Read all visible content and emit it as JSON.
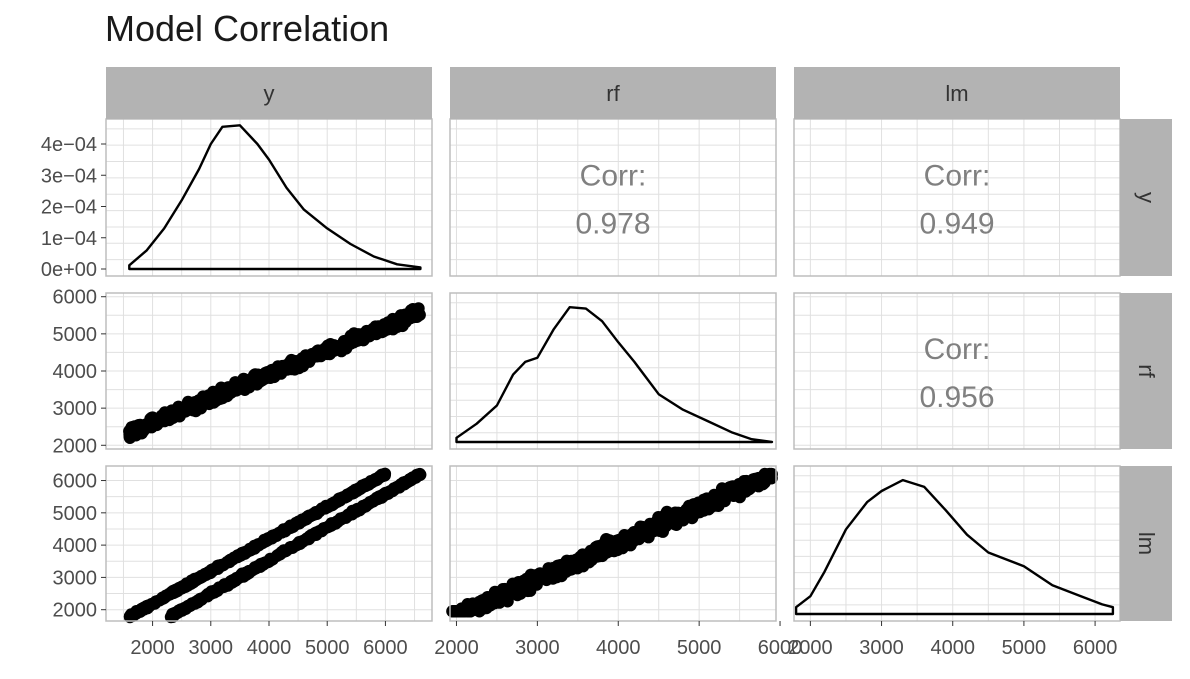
{
  "title": "Model Correlation",
  "chart_data": {
    "type": "pairs",
    "title": "Model Correlation",
    "variables": [
      "y",
      "rf",
      "lm"
    ],
    "column_strips": [
      "y",
      "rf",
      "lm"
    ],
    "row_strips": [
      "y",
      "rf",
      "lm"
    ],
    "colors": {
      "strip": "#b3b3b3",
      "grid": "#e0e0e0",
      "border": "#bdbdbd",
      "mark": "#000000",
      "corr_text": "#808080"
    },
    "axes": {
      "y_density": {
        "range": [
          0,
          0.00048
        ],
        "ticks": [
          0,
          0.0001,
          0.0002,
          0.0003,
          0.0004
        ],
        "tick_labels": [
          "0e+00",
          "1e−04",
          "2e−04",
          "3e−04",
          "4e−04"
        ]
      },
      "rf_values": {
        "range": [
          1900,
          6100
        ],
        "ticks": [
          2000,
          3000,
          4000,
          5000,
          6000
        ],
        "tick_labels": [
          "2000",
          "3000",
          "4000",
          "5000",
          "6000"
        ]
      },
      "lm_values": {
        "range": [
          1650,
          6450
        ],
        "ticks": [
          2000,
          3000,
          4000,
          5000,
          6000
        ],
        "tick_labels": [
          "2000",
          "3000",
          "4000",
          "5000",
          "6000"
        ]
      },
      "x_y": {
        "range": [
          1200,
          6800
        ],
        "ticks": [
          2000,
          3000,
          4000,
          5000,
          6000
        ],
        "tick_labels": [
          "2000",
          "3000",
          "4000",
          "5000",
          "6000"
        ]
      },
      "x_rf": {
        "range": [
          1920,
          5950
        ],
        "ticks": [
          2000,
          3000,
          4000,
          5000,
          6000
        ],
        "tick_labels": [
          "2000",
          "3000",
          "4000",
          "5000",
          "6000"
        ]
      },
      "x_lm": {
        "range": [
          1770,
          6350
        ],
        "ticks": [
          2000,
          3000,
          4000,
          5000,
          6000
        ],
        "tick_labels": [
          "2000",
          "3000",
          "4000",
          "5000",
          "6000"
        ]
      }
    },
    "correlations": [
      {
        "row": "y",
        "col": "rf",
        "label": "Corr:",
        "value": "0.978"
      },
      {
        "row": "y",
        "col": "lm",
        "label": "Corr:",
        "value": "0.949"
      },
      {
        "row": "rf",
        "col": "lm",
        "label": "Corr:",
        "value": "0.956"
      }
    ],
    "densities": {
      "y": [
        [
          1600,
          0.0
        ],
        [
          1600,
          1.2e-05
        ],
        [
          1900,
          6e-05
        ],
        [
          2200,
          0.00013
        ],
        [
          2500,
          0.00022
        ],
        [
          2800,
          0.00032
        ],
        [
          3000,
          0.0004
        ],
        [
          3200,
          0.000455
        ],
        [
          3500,
          0.00046
        ],
        [
          3800,
          0.0004
        ],
        [
          4000,
          0.00035
        ],
        [
          4300,
          0.00026
        ],
        [
          4600,
          0.00019
        ],
        [
          5000,
          0.00013
        ],
        [
          5400,
          8e-05
        ],
        [
          5800,
          4e-05
        ],
        [
          6200,
          1.5e-05
        ],
        [
          6600,
          5e-06
        ],
        [
          6600,
          0.0
        ]
      ],
      "rf": [
        [
          2000,
          0.0
        ],
        [
          2000,
          0.03
        ],
        [
          2250,
          0.13
        ],
        [
          2500,
          0.26
        ],
        [
          2700,
          0.48
        ],
        [
          2850,
          0.57
        ],
        [
          3000,
          0.6
        ],
        [
          3200,
          0.8
        ],
        [
          3400,
          0.96
        ],
        [
          3600,
          0.95
        ],
        [
          3800,
          0.86
        ],
        [
          4000,
          0.71
        ],
        [
          4200,
          0.57
        ],
        [
          4500,
          0.34
        ],
        [
          4800,
          0.23
        ],
        [
          5100,
          0.15
        ],
        [
          5400,
          0.07
        ],
        [
          5650,
          0.02
        ],
        [
          5900,
          0.0
        ]
      ],
      "lm": [
        [
          1800,
          0.0
        ],
        [
          1800,
          0.05
        ],
        [
          2000,
          0.13
        ],
        [
          2200,
          0.31
        ],
        [
          2500,
          0.62
        ],
        [
          2800,
          0.82
        ],
        [
          3000,
          0.9
        ],
        [
          3300,
          0.98
        ],
        [
          3600,
          0.93
        ],
        [
          3900,
          0.76
        ],
        [
          4200,
          0.58
        ],
        [
          4500,
          0.45
        ],
        [
          5000,
          0.35
        ],
        [
          5400,
          0.21
        ],
        [
          5800,
          0.13
        ],
        [
          6100,
          0.07
        ],
        [
          6250,
          0.05
        ],
        [
          6250,
          0.0
        ]
      ]
    },
    "scatter": {
      "rf_vs_y": {
        "x_range": [
          1600,
          6600
        ],
        "trend": "y ≈ 1300 + 0.65·x",
        "band_halfwidth": 220,
        "points_shown": 600
      },
      "lm_vs_y": {
        "bands": [
          {
            "x_start": 1600,
            "x_end": 6000,
            "y_start": 1780,
            "y_end": 6200
          },
          {
            "x_start": 2300,
            "x_end": 6600,
            "y_start": 1780,
            "y_end": 6200
          }
        ],
        "points_shown": 700
      },
      "lm_vs_rf": {
        "x_range": [
          1950,
          5900
        ],
        "trend": "y ≈ -420 + 1.12·x",
        "band_halfwidth": 330,
        "points_shown": 700
      }
    }
  }
}
